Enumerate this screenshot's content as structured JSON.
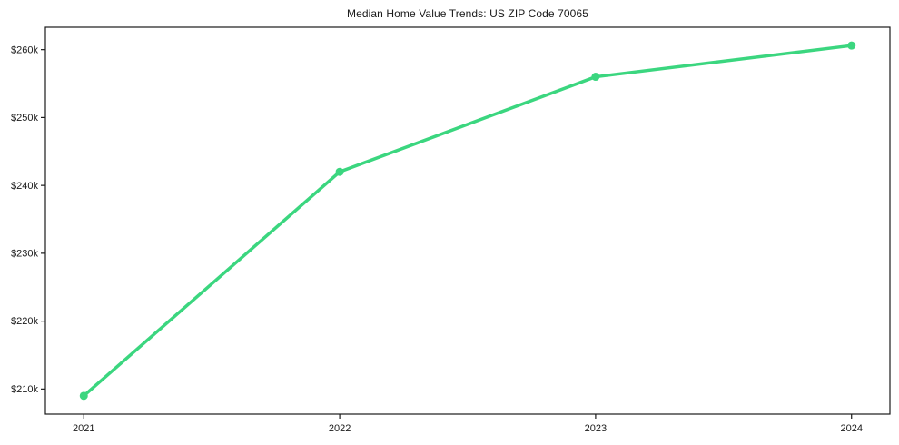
{
  "chart_data": {
    "type": "line",
    "title": "Median Home Value Trends: US ZIP Code 70065",
    "xlabel": "",
    "ylabel": "",
    "x": [
      2021,
      2022,
      2023,
      2024
    ],
    "x_tick_labels": [
      "2021",
      "2022",
      "2023",
      "2024"
    ],
    "series": [
      {
        "name": "Median Home Value",
        "values": [
          209000,
          242000,
          256000,
          260600
        ]
      }
    ],
    "y_ticks": [
      {
        "value": 210000,
        "label": "$210k"
      },
      {
        "value": 220000,
        "label": "$220k"
      },
      {
        "value": 230000,
        "label": "$230k"
      },
      {
        "value": 240000,
        "label": "$240k"
      },
      {
        "value": 250000,
        "label": "$250k"
      },
      {
        "value": 260000,
        "label": "$260k"
      }
    ],
    "xlim": [
      2020.85,
      2024.15
    ],
    "ylim": [
      206300,
      263300
    ],
    "grid": false,
    "legend": "none",
    "colors": {
      "line": "#3bd67f",
      "marker": "#3bd67f",
      "spine": "#1a1a1a",
      "tick": "#1a1a1a",
      "background": "#ffffff"
    },
    "line_width": 3.5,
    "marker_radius": 4.5
  }
}
